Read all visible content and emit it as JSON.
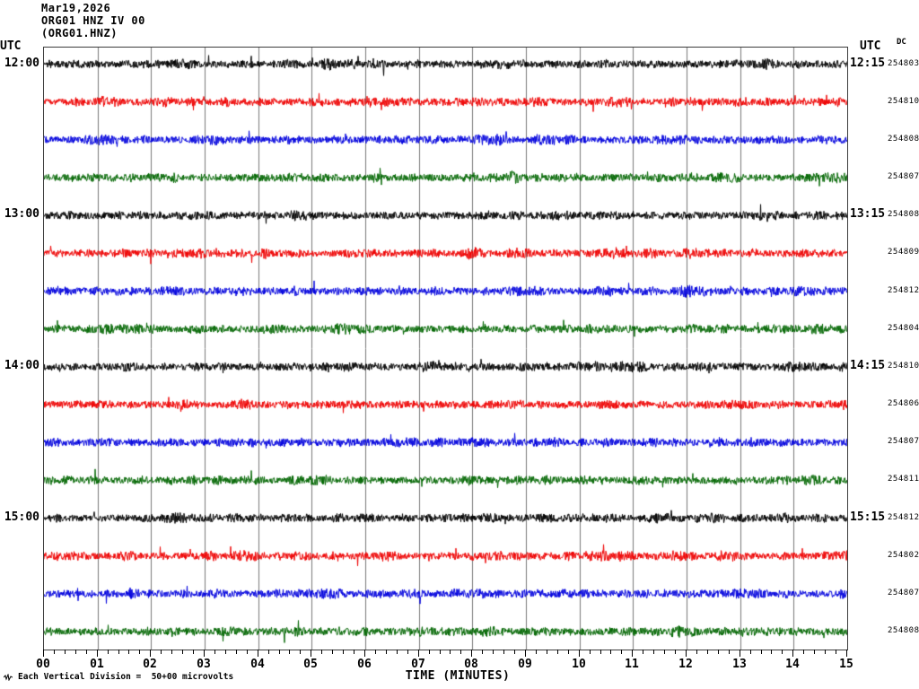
{
  "header": {
    "date": "Mar19,2026",
    "station_line": "ORG01 HNZ IV 00",
    "channel_line": "(ORG01.HNZ)",
    "left_axis_header": "UTC",
    "right_axis_header": "UTC",
    "dc_header": "DC"
  },
  "x_axis": {
    "tick_labels": [
      "00",
      "01",
      "02",
      "03",
      "04",
      "05",
      "06",
      "07",
      "08",
      "09",
      "10",
      "11",
      "12",
      "13",
      "14",
      "15"
    ],
    "minor_ticks_per_division": 4,
    "title": "TIME (MINUTES)"
  },
  "footer": {
    "scale_note": "Each Vertical Division =  50+00 microvolts"
  },
  "colors": {
    "trace_cycle": [
      "#000000",
      "#ee0000",
      "#0000dd",
      "#006600"
    ],
    "grid": "#787878",
    "frame": "#3c3c3c",
    "text": "#000000"
  },
  "chart_data": {
    "type": "line",
    "subtype": "helicorder-seismogram",
    "title": "ORG01 HNZ IV 00 (ORG01.HNZ) Mar19,2026",
    "xlabel": "TIME (MINUTES)",
    "x_range_minutes": [
      0,
      15
    ],
    "minutes_per_row": 15,
    "grid": "vertical-minute-lines",
    "legend_position": "none",
    "signal": "continuous background noise, no distinct events, ~1 vertical division peak-to-peak",
    "rows": [
      {
        "row": 0,
        "start_label": "12:00",
        "end_label": "12:15",
        "color": "black",
        "dc": "254803"
      },
      {
        "row": 1,
        "start_label": "",
        "end_label": "",
        "color": "red",
        "dc": "254810"
      },
      {
        "row": 2,
        "start_label": "",
        "end_label": "",
        "color": "blue",
        "dc": "254808"
      },
      {
        "row": 3,
        "start_label": "",
        "end_label": "",
        "color": "green",
        "dc": "254807"
      },
      {
        "row": 4,
        "start_label": "13:00",
        "end_label": "13:15",
        "color": "black",
        "dc": "254808"
      },
      {
        "row": 5,
        "start_label": "",
        "end_label": "",
        "color": "red",
        "dc": "254809"
      },
      {
        "row": 6,
        "start_label": "",
        "end_label": "",
        "color": "blue",
        "dc": "254812"
      },
      {
        "row": 7,
        "start_label": "",
        "end_label": "",
        "color": "green",
        "dc": "254804"
      },
      {
        "row": 8,
        "start_label": "14:00",
        "end_label": "14:15",
        "color": "black",
        "dc": "254810"
      },
      {
        "row": 9,
        "start_label": "",
        "end_label": "",
        "color": "red",
        "dc": "254806"
      },
      {
        "row": 10,
        "start_label": "",
        "end_label": "",
        "color": "blue",
        "dc": "254807"
      },
      {
        "row": 11,
        "start_label": "",
        "end_label": "",
        "color": "green",
        "dc": "254811"
      },
      {
        "row": 12,
        "start_label": "15:00",
        "end_label": "15:15",
        "color": "black",
        "dc": "254812"
      },
      {
        "row": 13,
        "start_label": "",
        "end_label": "",
        "color": "red",
        "dc": "254802"
      },
      {
        "row": 14,
        "start_label": "",
        "end_label": "",
        "color": "blue",
        "dc": "254807"
      },
      {
        "row": 15,
        "start_label": "",
        "end_label": "",
        "color": "green",
        "dc": "254808"
      }
    ]
  }
}
